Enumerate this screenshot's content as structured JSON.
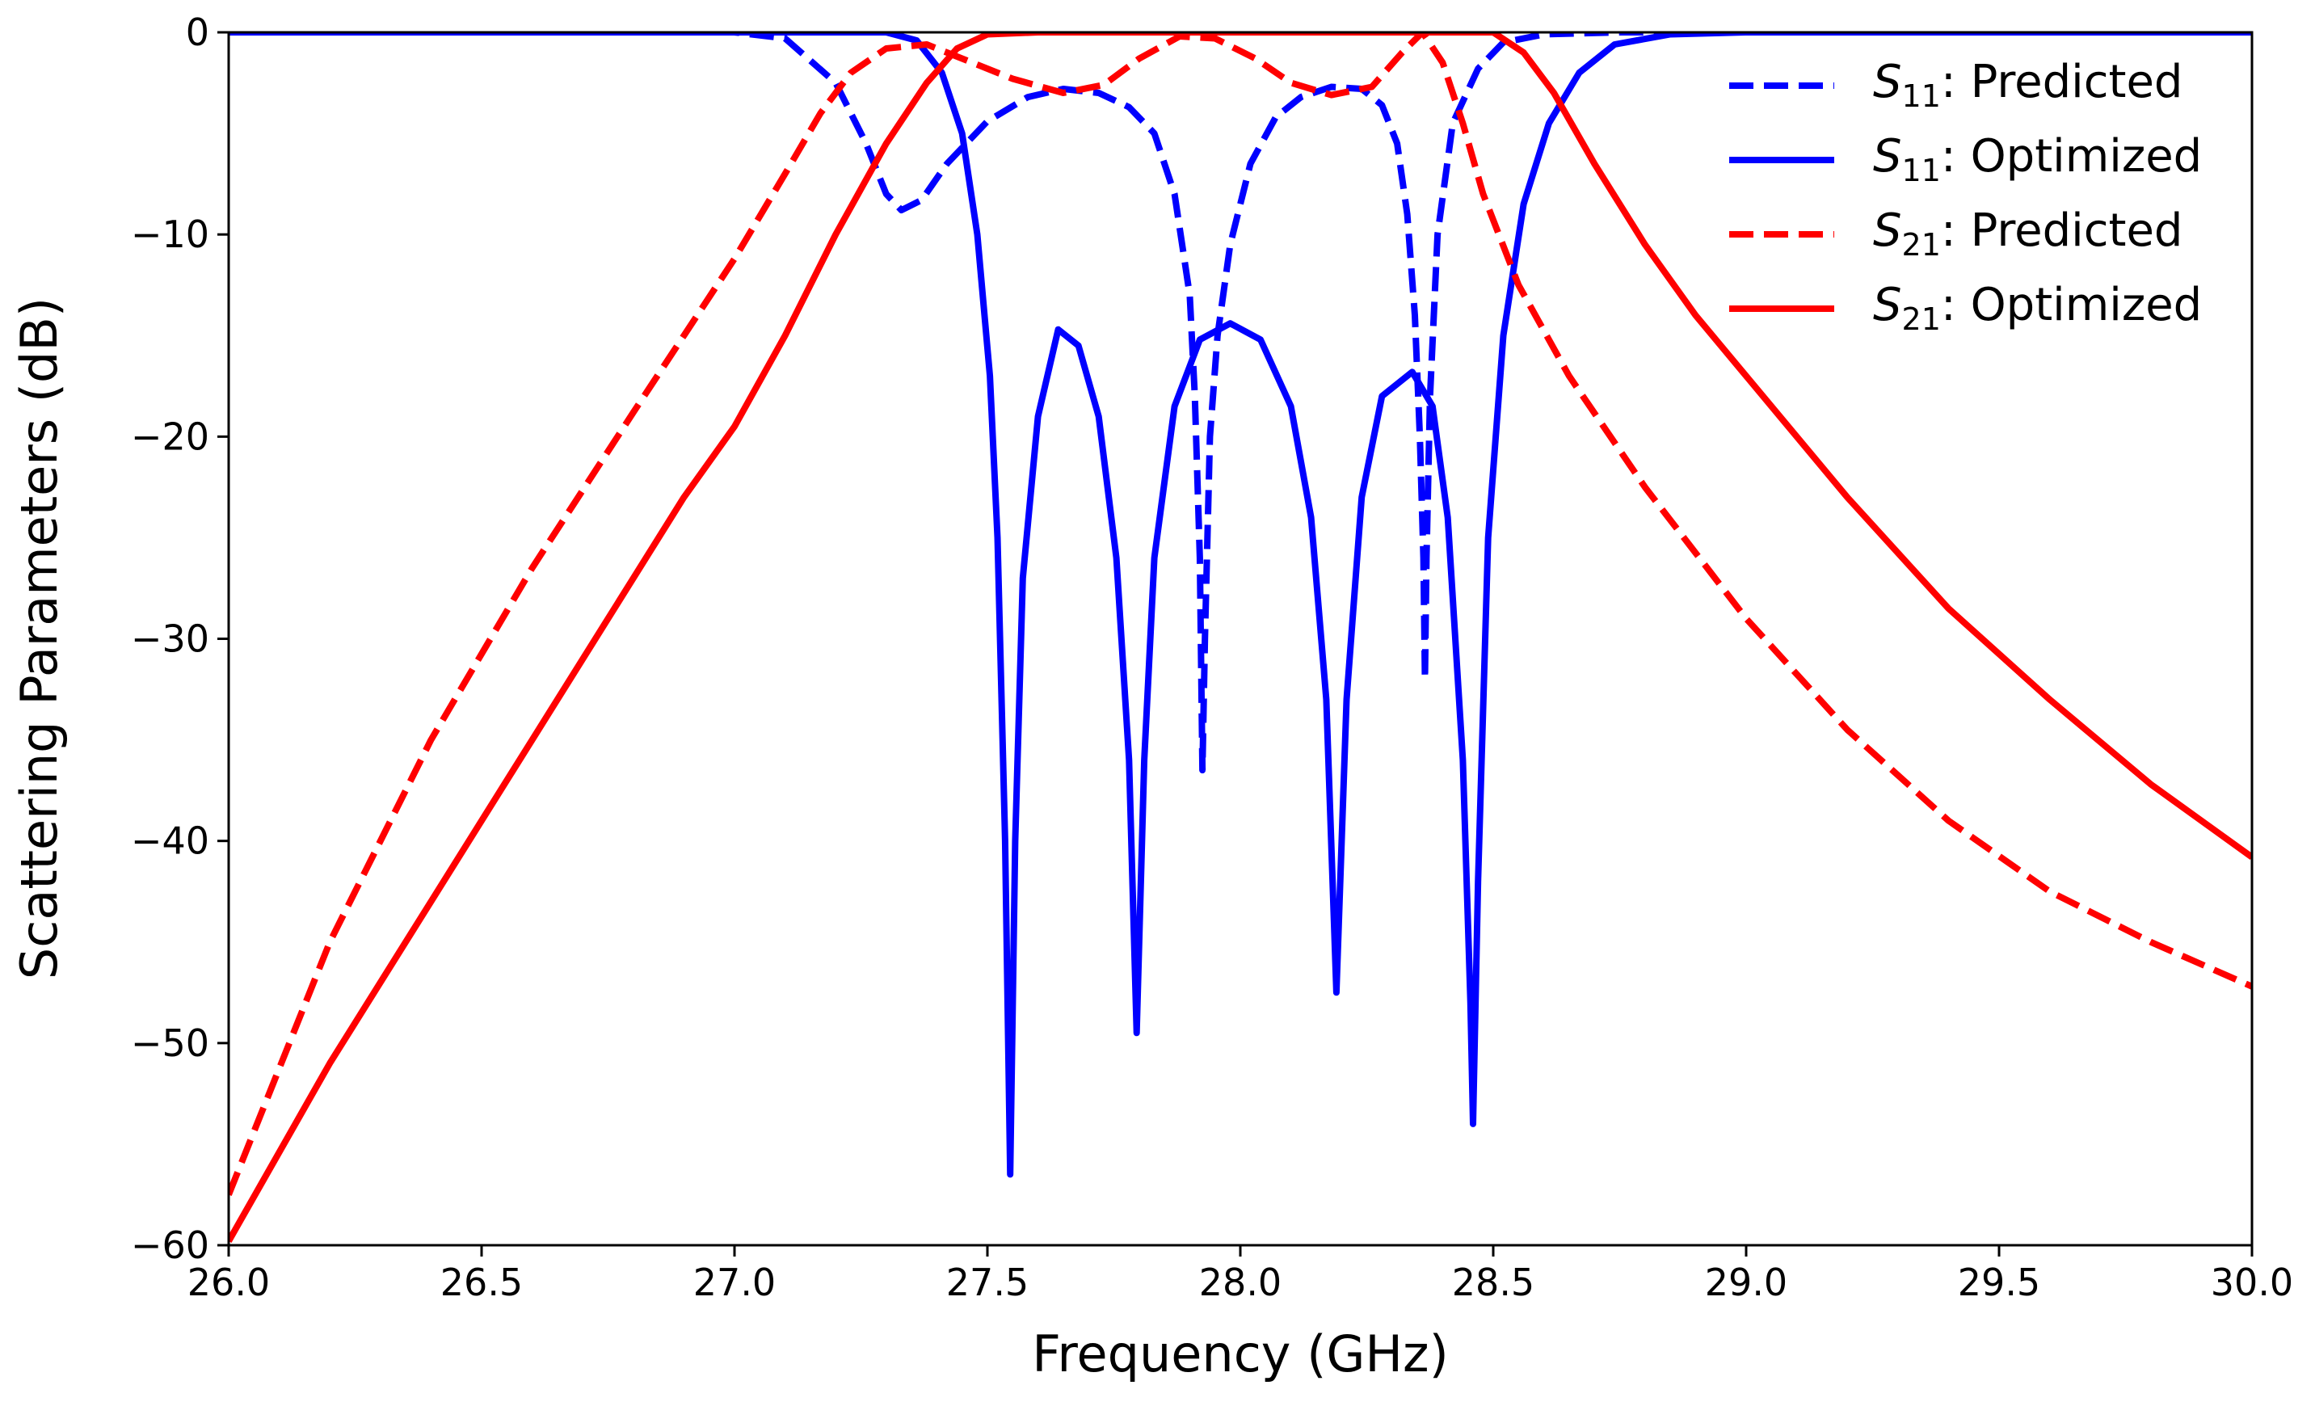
{
  "chart_data": {
    "type": "line",
    "xlabel": "Frequency (GHz)",
    "ylabel": "Scattering Parameters (dB)",
    "xlim": [
      26.0,
      30.0
    ],
    "ylim": [
      -60,
      0
    ],
    "xticks": [
      "26.0",
      "26.5",
      "27.0",
      "27.5",
      "28.0",
      "28.5",
      "29.0",
      "29.5",
      "30.0"
    ],
    "yticks": [
      "0",
      "−10",
      "−20",
      "−30",
      "−40",
      "−50",
      "−60"
    ],
    "grid": false,
    "legend_position": "top-right",
    "colors": {
      "s11": "#0000ff",
      "s21": "#ff0000"
    },
    "series": [
      {
        "name": "S11: Predicted",
        "symbol": "S",
        "subscript": "11",
        "suffix": ": Predicted",
        "color": "#0000ff",
        "dash": true,
        "points": [
          [
            26.0,
            0
          ],
          [
            27.0,
            0
          ],
          [
            27.1,
            -0.3
          ],
          [
            27.2,
            -2.5
          ],
          [
            27.26,
            -5.5
          ],
          [
            27.3,
            -8.0
          ],
          [
            27.33,
            -8.8
          ],
          [
            27.37,
            -8.3
          ],
          [
            27.42,
            -6.5
          ],
          [
            27.5,
            -4.4
          ],
          [
            27.58,
            -3.2
          ],
          [
            27.65,
            -2.8
          ],
          [
            27.72,
            -3.0
          ],
          [
            27.78,
            -3.7
          ],
          [
            27.83,
            -5.0
          ],
          [
            27.87,
            -8.0
          ],
          [
            27.9,
            -13
          ],
          [
            27.91,
            -18
          ],
          [
            27.92,
            -26
          ],
          [
            27.925,
            -36.5
          ],
          [
            27.93,
            -30
          ],
          [
            27.94,
            -20
          ],
          [
            27.955,
            -15
          ],
          [
            27.98,
            -10.5
          ],
          [
            28.02,
            -6.5
          ],
          [
            28.07,
            -4.2
          ],
          [
            28.12,
            -3.2
          ],
          [
            28.18,
            -2.7
          ],
          [
            28.24,
            -2.8
          ],
          [
            28.28,
            -3.6
          ],
          [
            28.31,
            -5.5
          ],
          [
            28.33,
            -9
          ],
          [
            28.345,
            -14
          ],
          [
            28.355,
            -20
          ],
          [
            28.362,
            -26
          ],
          [
            28.365,
            -32
          ],
          [
            28.368,
            -26
          ],
          [
            28.375,
            -18
          ],
          [
            28.39,
            -10
          ],
          [
            28.42,
            -4.5
          ],
          [
            28.47,
            -1.8
          ],
          [
            28.52,
            -0.5
          ],
          [
            28.6,
            -0.1
          ],
          [
            28.75,
            0
          ],
          [
            30.0,
            0
          ]
        ]
      },
      {
        "name": "S11: Optimized",
        "symbol": "S",
        "subscript": "11",
        "suffix": ": Optimized",
        "color": "#0000ff",
        "dash": false,
        "points": [
          [
            26.0,
            0
          ],
          [
            27.3,
            0
          ],
          [
            27.36,
            -0.4
          ],
          [
            27.41,
            -2.0
          ],
          [
            27.45,
            -5.0
          ],
          [
            27.48,
            -10
          ],
          [
            27.505,
            -17
          ],
          [
            27.52,
            -25
          ],
          [
            27.535,
            -40
          ],
          [
            27.545,
            -56.5
          ],
          [
            27.555,
            -40
          ],
          [
            27.57,
            -27
          ],
          [
            27.6,
            -19
          ],
          [
            27.64,
            -14.7
          ],
          [
            27.68,
            -15.5
          ],
          [
            27.72,
            -19
          ],
          [
            27.755,
            -26
          ],
          [
            27.78,
            -36
          ],
          [
            27.795,
            -49.5
          ],
          [
            27.81,
            -36
          ],
          [
            27.83,
            -26
          ],
          [
            27.87,
            -18.5
          ],
          [
            27.92,
            -15.2
          ],
          [
            27.98,
            -14.4
          ],
          [
            28.04,
            -15.2
          ],
          [
            28.1,
            -18.5
          ],
          [
            28.14,
            -24
          ],
          [
            28.17,
            -33
          ],
          [
            28.19,
            -47.5
          ],
          [
            28.21,
            -33
          ],
          [
            28.24,
            -23
          ],
          [
            28.28,
            -18
          ],
          [
            28.34,
            -16.8
          ],
          [
            28.38,
            -18.5
          ],
          [
            28.41,
            -24
          ],
          [
            28.44,
            -36
          ],
          [
            28.455,
            -48
          ],
          [
            28.46,
            -54
          ],
          [
            28.47,
            -42
          ],
          [
            28.49,
            -25
          ],
          [
            28.52,
            -15
          ],
          [
            28.56,
            -8.5
          ],
          [
            28.61,
            -4.5
          ],
          [
            28.67,
            -2.0
          ],
          [
            28.74,
            -0.6
          ],
          [
            28.85,
            -0.1
          ],
          [
            29.0,
            0
          ],
          [
            30.0,
            0
          ]
        ]
      },
      {
        "name": "S21: Predicted",
        "symbol": "S",
        "subscript": "21",
        "suffix": ": Predicted",
        "color": "#ff0000",
        "dash": true,
        "points": [
          [
            26.0,
            -57.5
          ],
          [
            26.2,
            -45
          ],
          [
            26.4,
            -35
          ],
          [
            26.6,
            -26.5
          ],
          [
            26.8,
            -18.8
          ],
          [
            26.9,
            -15
          ],
          [
            27.0,
            -11.2
          ],
          [
            27.1,
            -7.0
          ],
          [
            27.17,
            -4.0
          ],
          [
            27.23,
            -2.0
          ],
          [
            27.3,
            -0.8
          ],
          [
            27.38,
            -0.6
          ],
          [
            27.45,
            -1.3
          ],
          [
            27.55,
            -2.3
          ],
          [
            27.65,
            -3.0
          ],
          [
            27.73,
            -2.6
          ],
          [
            27.8,
            -1.3
          ],
          [
            27.88,
            -0.2
          ],
          [
            27.95,
            -0.3
          ],
          [
            28.03,
            -1.3
          ],
          [
            28.1,
            -2.5
          ],
          [
            28.18,
            -3.1
          ],
          [
            28.26,
            -2.7
          ],
          [
            28.32,
            -1.0
          ],
          [
            28.36,
            0
          ],
          [
            28.4,
            -1.5
          ],
          [
            28.44,
            -4.5
          ],
          [
            28.48,
            -8
          ],
          [
            28.55,
            -12.5
          ],
          [
            28.65,
            -17
          ],
          [
            28.8,
            -22.5
          ],
          [
            29.0,
            -29
          ],
          [
            29.2,
            -34.5
          ],
          [
            29.4,
            -39
          ],
          [
            29.6,
            -42.5
          ],
          [
            29.8,
            -45
          ],
          [
            30.0,
            -47.2
          ]
        ]
      },
      {
        "name": "S21: Optimized",
        "symbol": "S",
        "subscript": "21",
        "suffix": ": Optimized",
        "color": "#ff0000",
        "dash": false,
        "points": [
          [
            26.0,
            -59.8
          ],
          [
            26.2,
            -51
          ],
          [
            26.4,
            -43
          ],
          [
            26.6,
            -35
          ],
          [
            26.8,
            -27
          ],
          [
            26.9,
            -23
          ],
          [
            27.0,
            -19.5
          ],
          [
            27.1,
            -15
          ],
          [
            27.2,
            -10
          ],
          [
            27.3,
            -5.5
          ],
          [
            27.38,
            -2.5
          ],
          [
            27.44,
            -0.8
          ],
          [
            27.5,
            -0.1
          ],
          [
            27.6,
            0
          ],
          [
            28.5,
            0
          ],
          [
            28.56,
            -1.0
          ],
          [
            28.62,
            -3.0
          ],
          [
            28.7,
            -6.5
          ],
          [
            28.8,
            -10.5
          ],
          [
            28.9,
            -14
          ],
          [
            29.0,
            -17
          ],
          [
            29.2,
            -23
          ],
          [
            29.4,
            -28.5
          ],
          [
            29.6,
            -33
          ],
          [
            29.8,
            -37.2
          ],
          [
            30.0,
            -40.8
          ]
        ]
      }
    ]
  }
}
